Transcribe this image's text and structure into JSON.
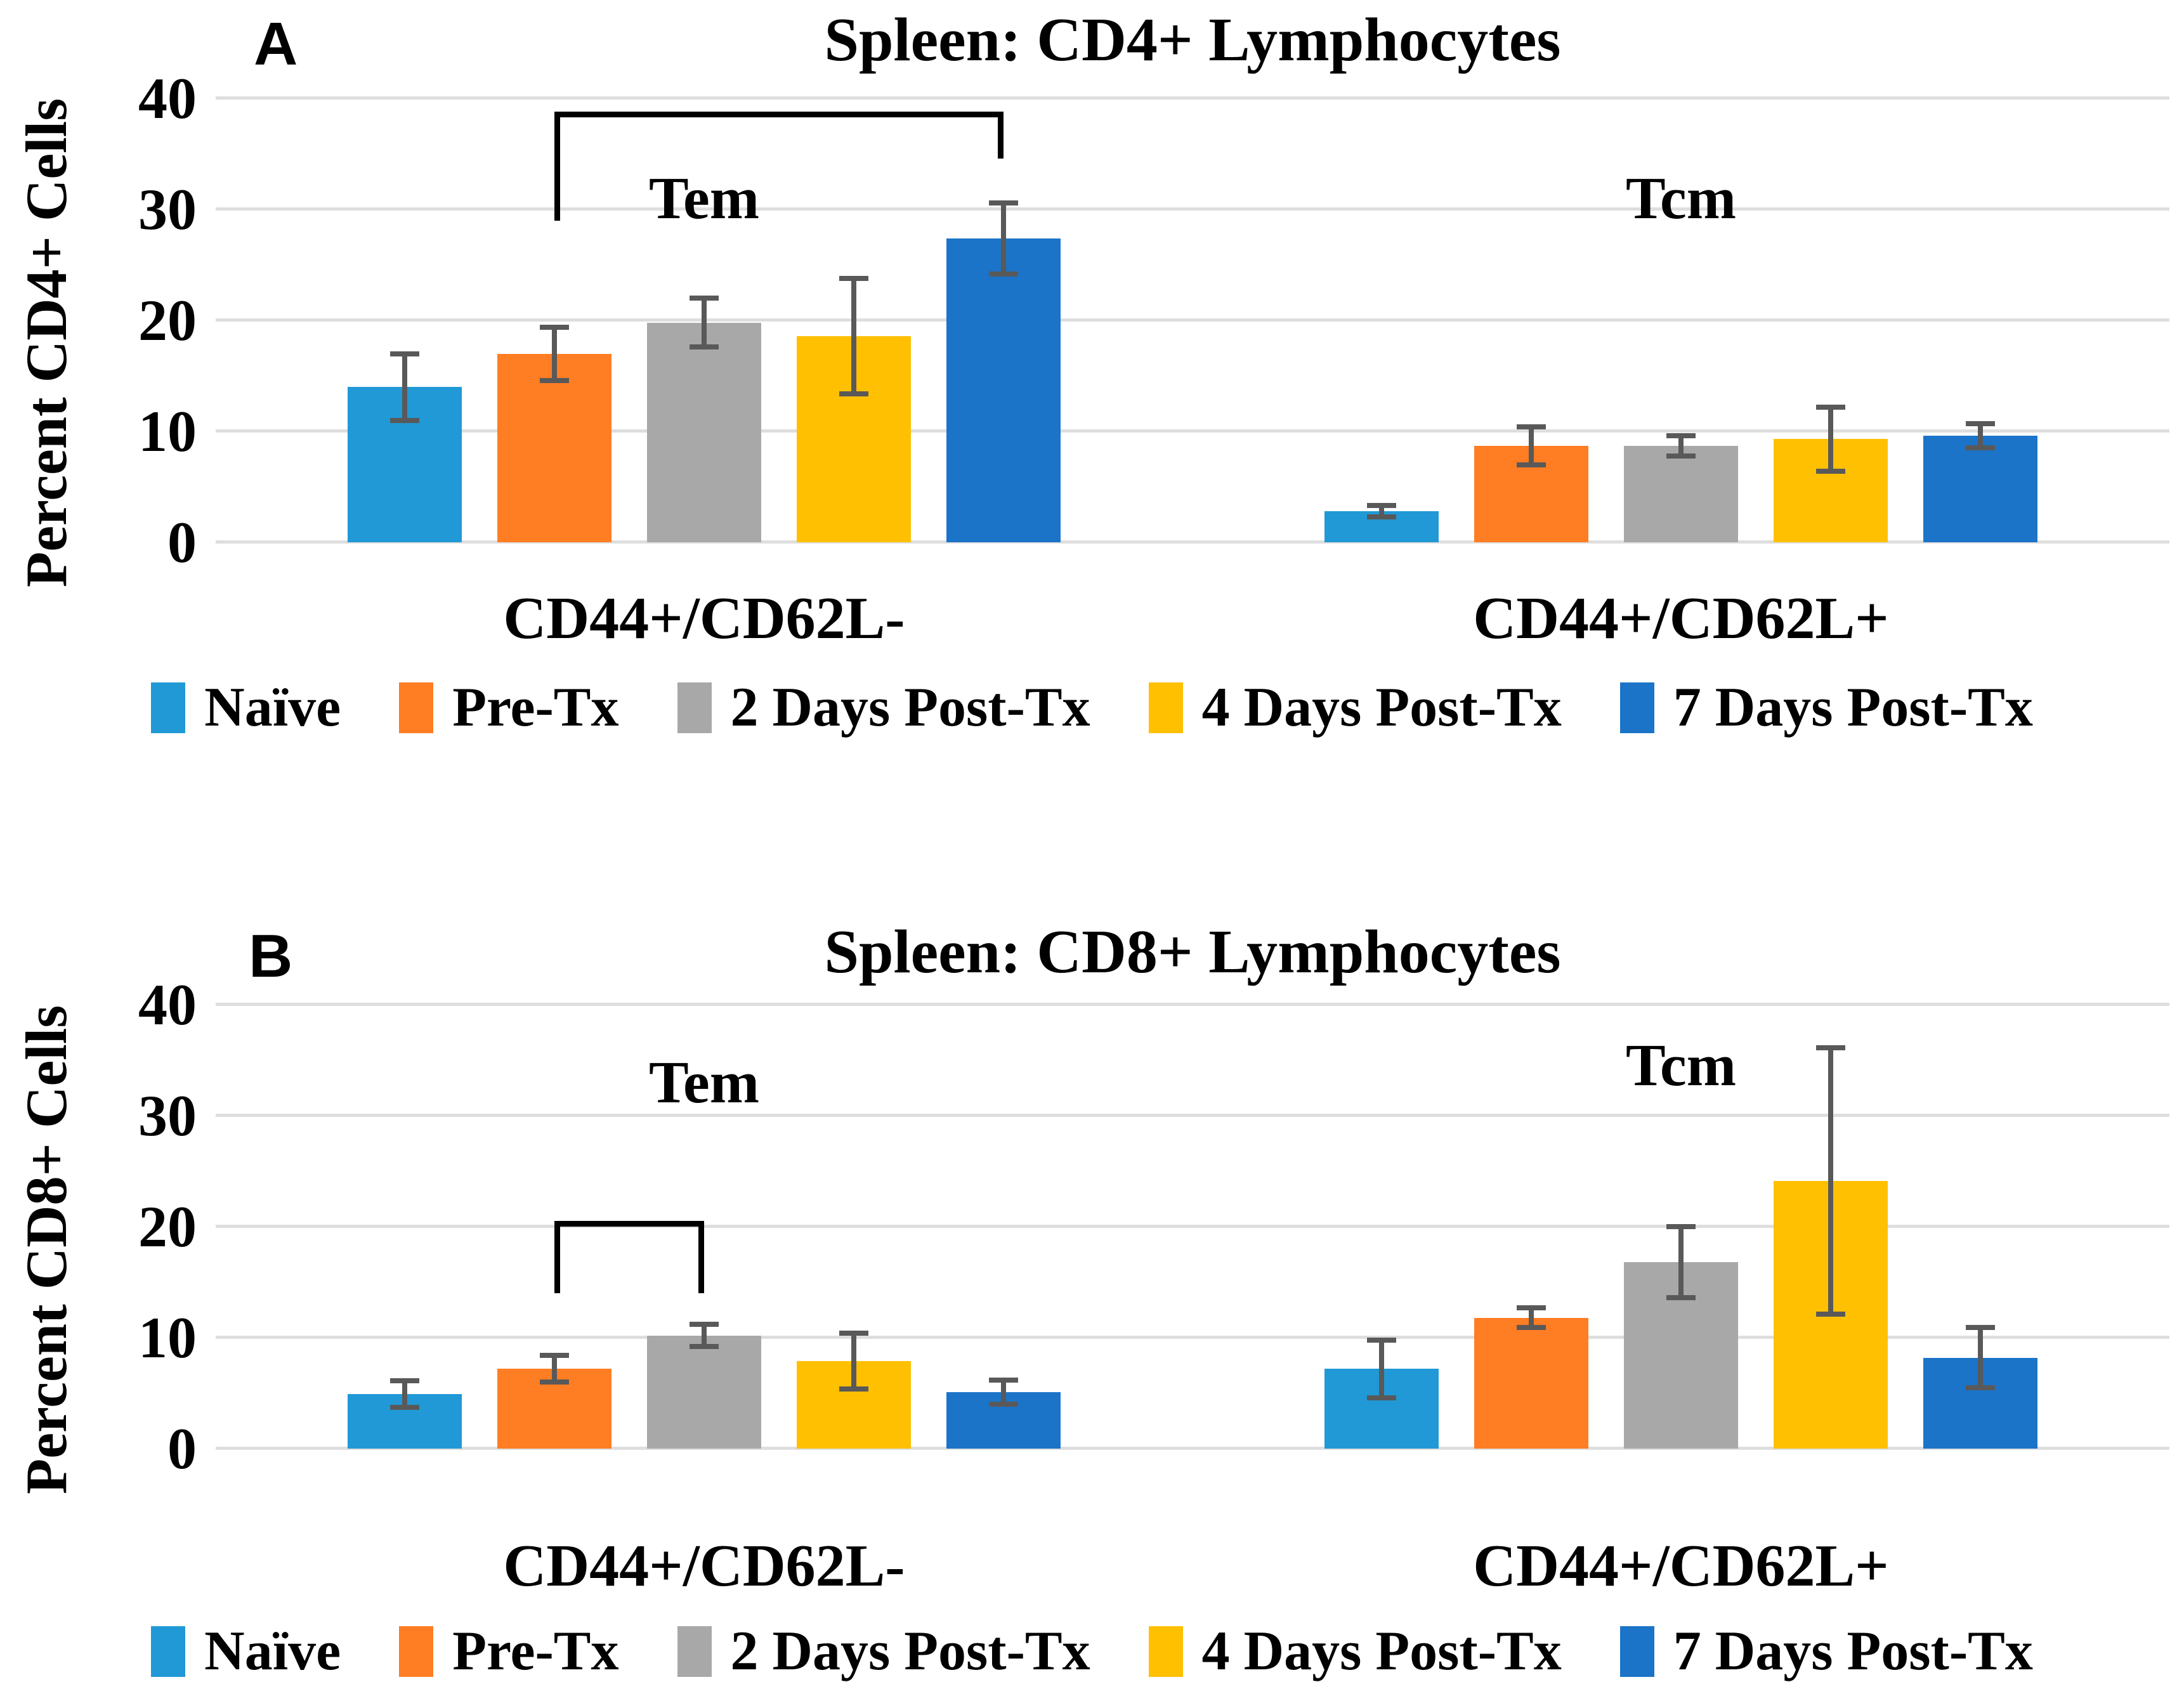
{
  "figure": {
    "background": "#ffffff",
    "grid_color": "#dedede",
    "error_bar_color": "#595959",
    "bracket_color": "#000000"
  },
  "chart_data": [
    {
      "type": "bar",
      "panel_letter": "A",
      "title": "Spleen: CD4+ Lymphocytes",
      "ylabel": "Percent CD4+ Cells",
      "ylim": [
        0,
        40
      ],
      "yticks": [
        40,
        30,
        20,
        10,
        0
      ],
      "grid": true,
      "legend_position": "bottom",
      "categories": [
        "CD44+/CD62L-",
        "CD44+/CD62L+"
      ],
      "series": [
        {
          "name": "Naïve",
          "color": "#2199d6",
          "values": [
            14.0,
            2.8
          ],
          "errors": [
            3.0,
            0.5
          ]
        },
        {
          "name": "Pre-Tx",
          "color": "#ff7d23",
          "values": [
            17.0,
            8.7
          ],
          "errors": [
            2.4,
            1.7
          ]
        },
        {
          "name": "2 Days Post-Tx",
          "color": "#a8a8a8",
          "values": [
            19.8,
            8.7
          ],
          "errors": [
            2.2,
            0.9
          ]
        },
        {
          "name": "4 Days Post-Tx",
          "color": "#ffc001",
          "values": [
            18.6,
            9.3
          ],
          "errors": [
            5.2,
            2.9
          ]
        },
        {
          "name": "7 Days Post-Tx",
          "color": "#1b74c8",
          "values": [
            27.4,
            9.6
          ],
          "errors": [
            3.2,
            1.1
          ]
        }
      ],
      "subgroup_labels": [
        {
          "text": "Tem",
          "group": 0,
          "at_value": 31
        },
        {
          "text": "Tcm",
          "group": 1,
          "at_value": 31
        }
      ],
      "bracket": {
        "group": 0,
        "from_bar": 1,
        "to_bar": 4,
        "top_value": 38.8,
        "left_leg_to": 29.0,
        "right_leg_to": 34.6
      }
    },
    {
      "type": "bar",
      "panel_letter": "B",
      "title": "Spleen: CD8+ Lymphocytes",
      "ylabel": "Percent CD8+ Cells",
      "ylim": [
        0,
        40
      ],
      "yticks": [
        40,
        30,
        20,
        10,
        0
      ],
      "grid": true,
      "legend_position": "bottom",
      "categories": [
        "CD44+/CD62L-",
        "CD44+/CD62L+"
      ],
      "series": [
        {
          "name": "Naïve",
          "color": "#2199d6",
          "values": [
            4.9,
            7.2
          ],
          "errors": [
            1.2,
            2.6
          ]
        },
        {
          "name": "Pre-Tx",
          "color": "#ff7d23",
          "values": [
            7.2,
            11.8
          ],
          "errors": [
            1.2,
            0.9
          ]
        },
        {
          "name": "2 Days Post-Tx",
          "color": "#a8a8a8",
          "values": [
            10.2,
            16.8
          ],
          "errors": [
            1.0,
            3.2
          ]
        },
        {
          "name": "4 Days Post-Tx",
          "color": "#ffc001",
          "values": [
            7.9,
            24.1
          ],
          "errors": [
            2.5,
            12.0
          ]
        },
        {
          "name": "7 Days Post-Tx",
          "color": "#1b74c8",
          "values": [
            5.1,
            8.2
          ],
          "errors": [
            1.1,
            2.7
          ]
        }
      ],
      "subgroup_labels": [
        {
          "text": "Tem",
          "group": 0,
          "at_value": 33
        },
        {
          "text": "Tcm",
          "group": 1,
          "at_value": 34.5
        }
      ],
      "bracket": {
        "group": 0,
        "from_bar": 1,
        "to_bar": 2,
        "top_value": 20.5,
        "left_leg_to": 14.0,
        "right_leg_to": 14.0
      }
    }
  ]
}
